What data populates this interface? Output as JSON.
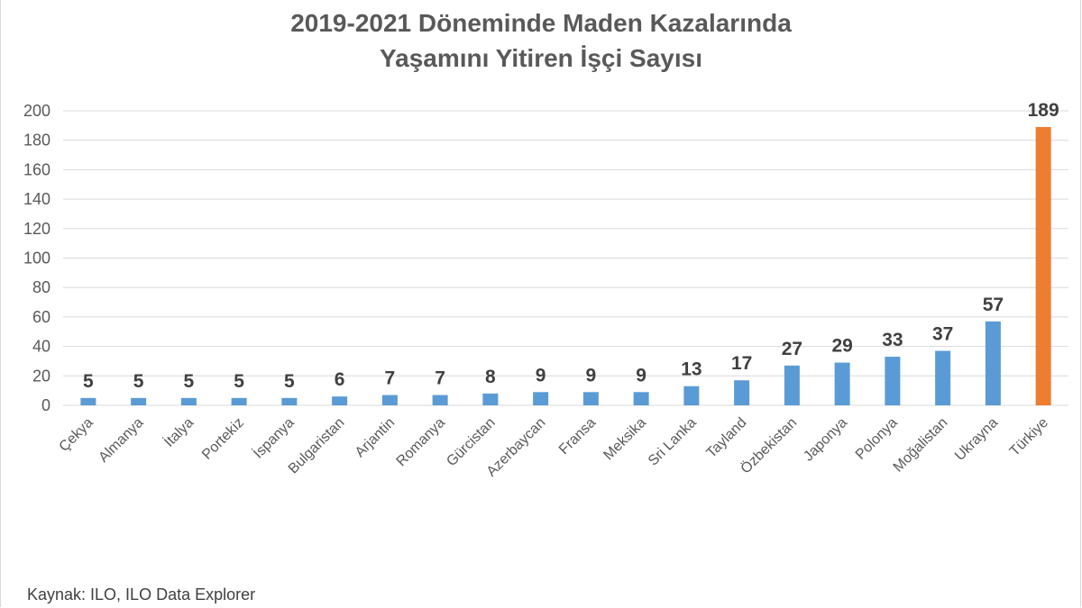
{
  "chart_data": {
    "type": "bar",
    "title_lines": [
      "2019-2021 Döneminde Maden Kazalarında",
      "Yaşamını Yitiren İşçi Sayısı"
    ],
    "categories": [
      "Çekya",
      "Almanya",
      "İtalya",
      "Portekiz",
      "İspanya",
      "Bulgaristan",
      "Arjantin",
      "Romanya",
      "Gürcistan",
      "Azerbaycan",
      "Fransa",
      "Meksika",
      "Sri Lanka",
      "Tayland",
      "Özbekistan",
      "Japonya",
      "Polonya",
      "Moğalistan",
      "Ukrayna",
      "Türkiye"
    ],
    "values": [
      5,
      5,
      5,
      5,
      5,
      6,
      7,
      7,
      8,
      9,
      9,
      9,
      13,
      17,
      27,
      29,
      33,
      37,
      57,
      189
    ],
    "ylim": [
      0,
      200
    ],
    "yticks": [
      "0",
      "20",
      "40",
      "60",
      "80",
      "100",
      "120",
      "140",
      "160",
      "180",
      "200"
    ],
    "grid": true,
    "bar_color": "#5b9bd5",
    "highlight_color": "#ed7d31",
    "highlight_category": "Türkiye",
    "source": "Kaynak: ILO, ILO Data Explorer"
  }
}
